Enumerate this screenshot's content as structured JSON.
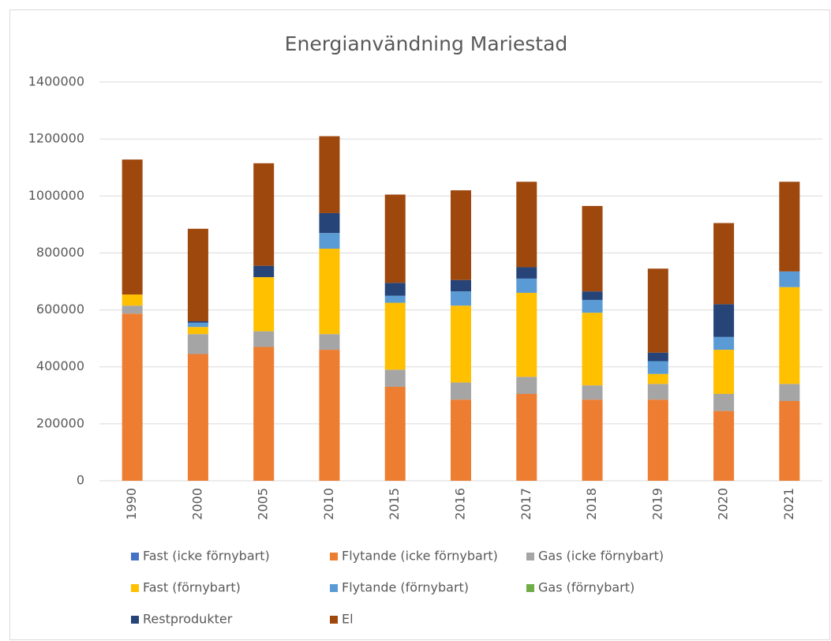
{
  "chart_data": {
    "type": "stacked_bar",
    "title": "Energianvändning Mariestad",
    "categories": [
      "1990",
      "2000",
      "2005",
      "2010",
      "2015",
      "2016",
      "2017",
      "2018",
      "2019",
      "2020",
      "2021"
    ],
    "series": [
      {
        "name": "Fast (icke förnybart)",
        "color": "#4472c4",
        "values": [
          0,
          0,
          0,
          0,
          0,
          0,
          0,
          0,
          0,
          0,
          0
        ]
      },
      {
        "name": "Flytande (icke förnybart)",
        "color": "#ed7d31",
        "values": [
          587000,
          445000,
          470000,
          460000,
          330000,
          285000,
          305000,
          285000,
          285000,
          245000,
          280000
        ]
      },
      {
        "name": "Gas (icke förnybart)",
        "color": "#a5a5a5",
        "values": [
          28000,
          70000,
          55000,
          55000,
          60000,
          60000,
          60000,
          50000,
          55000,
          60000,
          60000
        ]
      },
      {
        "name": "Fast (förnybart)",
        "color": "#ffc000",
        "values": [
          39000,
          25000,
          190000,
          300000,
          235000,
          270000,
          295000,
          255000,
          35000,
          155000,
          340000
        ]
      },
      {
        "name": "Flytande (förnybart)",
        "color": "#5b9bd5",
        "values": [
          0,
          15000,
          0,
          55000,
          25000,
          50000,
          50000,
          45000,
          45000,
          45000,
          55000
        ]
      },
      {
        "name": "Gas (förnybart)",
        "color": "#70ad47",
        "values": [
          0,
          0,
          0,
          0,
          0,
          0,
          0,
          0,
          0,
          0,
          0
        ]
      },
      {
        "name": "Restprodukter",
        "color": "#264478",
        "values": [
          0,
          5000,
          40000,
          70000,
          45000,
          40000,
          40000,
          30000,
          30000,
          115000,
          0
        ]
      },
      {
        "name": "El",
        "color": "#9e480e",
        "values": [
          474000,
          325000,
          360000,
          270000,
          310000,
          315000,
          300000,
          300000,
          295000,
          285000,
          315000
        ]
      }
    ],
    "ylim": [
      0,
      1400000
    ],
    "yticks": [
      0,
      200000,
      400000,
      600000,
      800000,
      1000000,
      1200000,
      1400000
    ],
    "grid": true,
    "legend": "bottom"
  }
}
